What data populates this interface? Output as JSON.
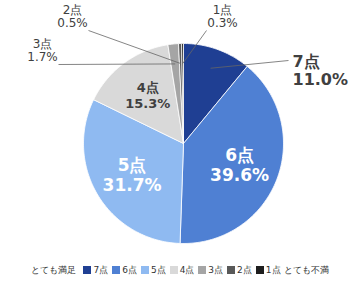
{
  "chart_data": {
    "type": "pie",
    "categories": [
      "7点",
      "6点",
      "5点",
      "4点",
      "3点",
      "2点",
      "1点"
    ],
    "values": [
      11.0,
      39.6,
      31.7,
      15.3,
      1.7,
      0.5,
      0.3
    ],
    "value_labels": [
      "11.0%",
      "39.6%",
      "31.7%",
      "15.3%",
      "1.7%",
      "0.5%",
      "0.3%"
    ],
    "colors": [
      "#1f3f93",
      "#4f80d3",
      "#8fbaf1",
      "#d9d9d9",
      "#a5a5a5",
      "#595959",
      "#1e1e1e"
    ],
    "data_labels": true,
    "legend": "bottom",
    "annotations": [
      "とても満足",
      "とても不満"
    ]
  }
}
